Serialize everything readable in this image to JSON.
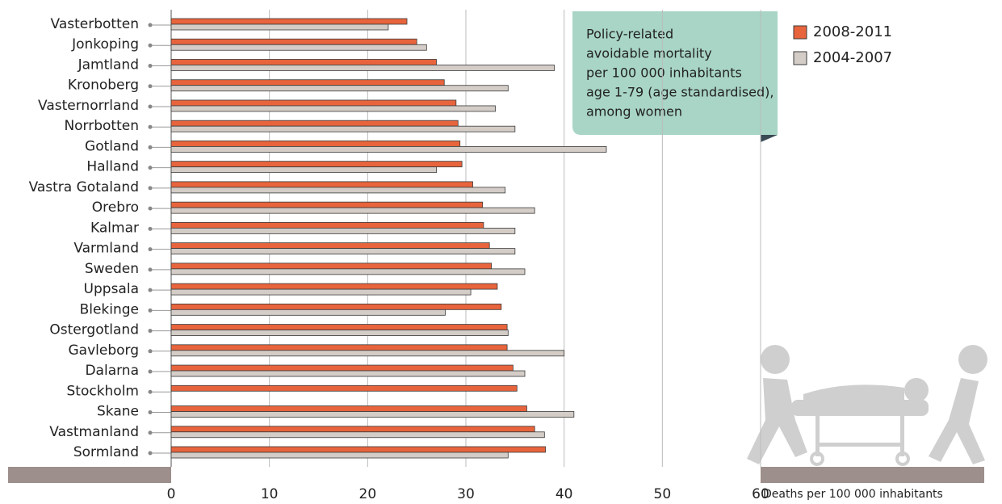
{
  "chart_data": {
    "type": "hbar",
    "categories": [
      "Vasterbotten",
      "Jonkoping",
      "Jamtland",
      "Kronoberg",
      "Vasternorrland",
      "Norrbotten",
      "Gotland",
      "Halland",
      "Vastra Gotaland",
      "Orebro",
      "Kalmar",
      "Varmland",
      "Sweden",
      "Uppsala",
      "Blekinge",
      "Ostergotland",
      "Gavleborg",
      "Dalarna",
      "Stockholm",
      "Skane",
      "Vastmanland",
      "Sormland"
    ],
    "series": [
      {
        "name": "2008-2011",
        "color": "#e8643c",
        "values": [
          24.0,
          25.0,
          27.0,
          27.8,
          29.0,
          29.2,
          29.4,
          29.6,
          30.7,
          31.7,
          31.8,
          32.4,
          32.6,
          33.2,
          33.6,
          34.2,
          34.2,
          34.8,
          35.2,
          36.2,
          37.0,
          38.1
        ]
      },
      {
        "name": "2004-2007",
        "color": "#d3ccc7",
        "values": [
          22.1,
          26.0,
          39.0,
          34.3,
          33.0,
          35.0,
          44.3,
          27.0,
          34.0,
          37.0,
          35.0,
          35.0,
          36.0,
          30.5,
          27.9,
          34.3,
          40.0,
          36.0,
          null,
          41.0,
          38.0,
          34.3
        ]
      }
    ],
    "xlim": [
      0,
      60
    ],
    "xticks": [
      0,
      10,
      20,
      30,
      40,
      50,
      60
    ],
    "xlabel": "Deaths per 100 000 inhabitants",
    "annotation": [
      "Policy-related",
      "avoidable mortality",
      "per 100 000 inhabitants",
      "age 1-79 (age standardised),",
      "among women"
    ],
    "grid": true
  }
}
